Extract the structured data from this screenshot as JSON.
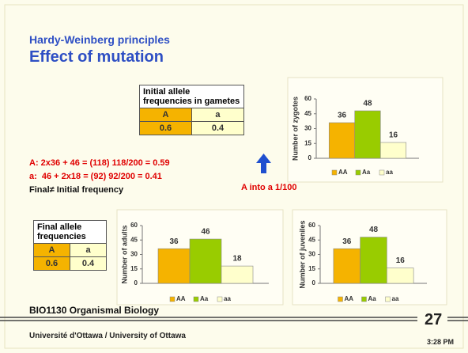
{
  "header": {
    "title": "Hardy-Weinberg principles",
    "subtitle": "Effect of mutation"
  },
  "initial_table": {
    "title": "Initial allele frequencies in gametes",
    "columns": [
      "A",
      "a"
    ],
    "values": [
      0.6,
      0.4
    ]
  },
  "calculations": [
    "A: 2x36 + 46 = (118) 118/200 = 0.59",
    "a:  46 + 2x18 = (92) 92/200 = 0.41",
    "Final≠ Initial frequency"
  ],
  "annotation": "A into a 1/100",
  "final_table": {
    "title": "Final allele frequencies",
    "columns": [
      "A",
      "a"
    ],
    "values": [
      0.6,
      0.4
    ]
  },
  "charts": [
    {
      "type": "bar",
      "ylabel": "Number of zygotes",
      "categories": [
        "AA",
        "Aa",
        "aa"
      ],
      "values": [
        36,
        48,
        16
      ],
      "colors": [
        "#f5b300",
        "#99cc00",
        "#ffffcc"
      ],
      "ylim": [
        0,
        60
      ],
      "yticks": [
        0,
        15,
        30,
        45,
        60
      ]
    },
    {
      "type": "bar",
      "ylabel": "Number of adults",
      "categories": [
        "AA",
        "Aa",
        "aa"
      ],
      "values": [
        36,
        46,
        18
      ],
      "colors": [
        "#f5b300",
        "#99cc00",
        "#ffffcc"
      ],
      "ylim": [
        0,
        60
      ],
      "yticks": [
        0,
        15,
        30,
        45,
        60
      ]
    },
    {
      "type": "bar",
      "ylabel": "Number of juveniles",
      "categories": [
        "AA",
        "Aa",
        "aa"
      ],
      "values": [
        36,
        48,
        16
      ],
      "colors": [
        "#f5b300",
        "#99cc00",
        "#ffffcc"
      ],
      "ylim": [
        0,
        60
      ],
      "yticks": [
        0,
        15,
        30,
        45,
        60
      ]
    }
  ],
  "footer": {
    "course": "BIO1130 Organismal Biology",
    "page": 27,
    "university": "Université d'Ottawa / University of Ottawa",
    "time": "3:28 PM"
  }
}
